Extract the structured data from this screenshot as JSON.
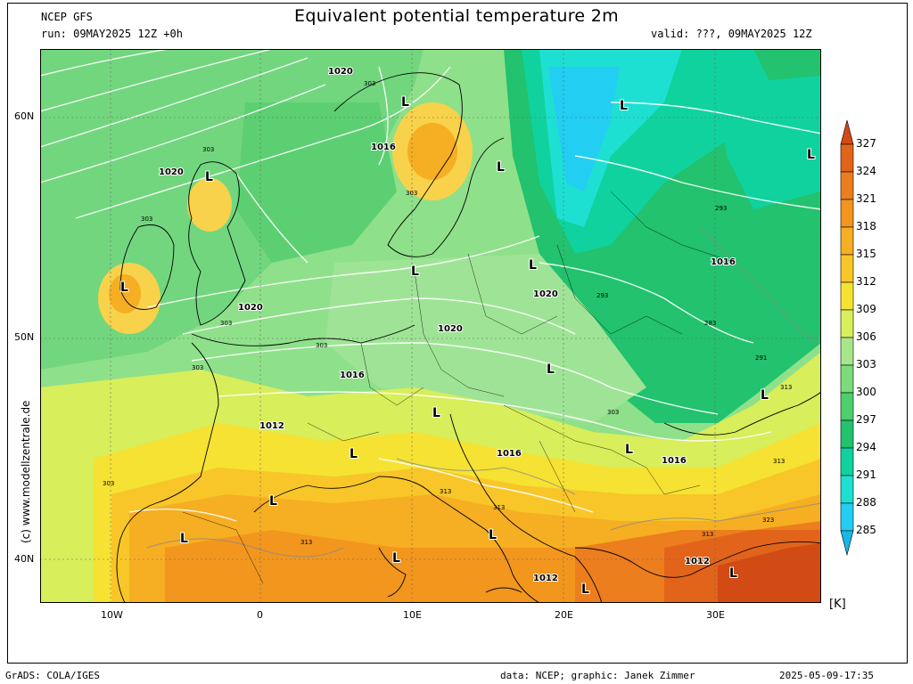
{
  "header": {
    "model": "NCEP GFS",
    "run": "run: 09MAY2025 12Z +0h",
    "title": "Equivalent potential temperature 2m",
    "valid": "valid: ???, 09MAY2025 12Z"
  },
  "credit": "(c) www.modellzentrale.de",
  "footer": {
    "left": "GrADS: COLA/IGES",
    "center": "data: NCEP; graphic: Janek Zimmer",
    "right": "2025-05-09-17:35"
  },
  "lat_ticks": [
    "60N",
    "50N",
    "40N"
  ],
  "lon_ticks": [
    "10W",
    "0",
    "10E",
    "20E",
    "30E"
  ],
  "colorbar": {
    "unit": "[K]",
    "values": [
      "327",
      "324",
      "321",
      "318",
      "315",
      "312",
      "309",
      "306",
      "303",
      "300",
      "297",
      "294",
      "291",
      "288",
      "285"
    ],
    "colors": [
      "#d24a14",
      "#e2641a",
      "#ec7e1e",
      "#f2961e",
      "#f6ae22",
      "#f8c628",
      "#f6e232",
      "#d8ee5a",
      "#a8e68c",
      "#7cdc7c",
      "#4ccf6c",
      "#22c26e",
      "#10d29e",
      "#1ee0d2",
      "#22cef2",
      "#1ab6ea"
    ]
  },
  "pressure_labels": [
    "1020",
    "1020",
    "1016",
    "1020",
    "1020",
    "1016",
    "1012",
    "1016",
    "1016",
    "1012",
    "1020",
    "1016",
    "1012"
  ],
  "theta_labels": [
    "303",
    "303",
    "303",
    "303",
    "303",
    "303",
    "303",
    "293",
    "293",
    "283",
    "291",
    "313",
    "303",
    "313",
    "313",
    "313",
    "313",
    "323",
    "303",
    "313"
  ],
  "low_marker": "L"
}
